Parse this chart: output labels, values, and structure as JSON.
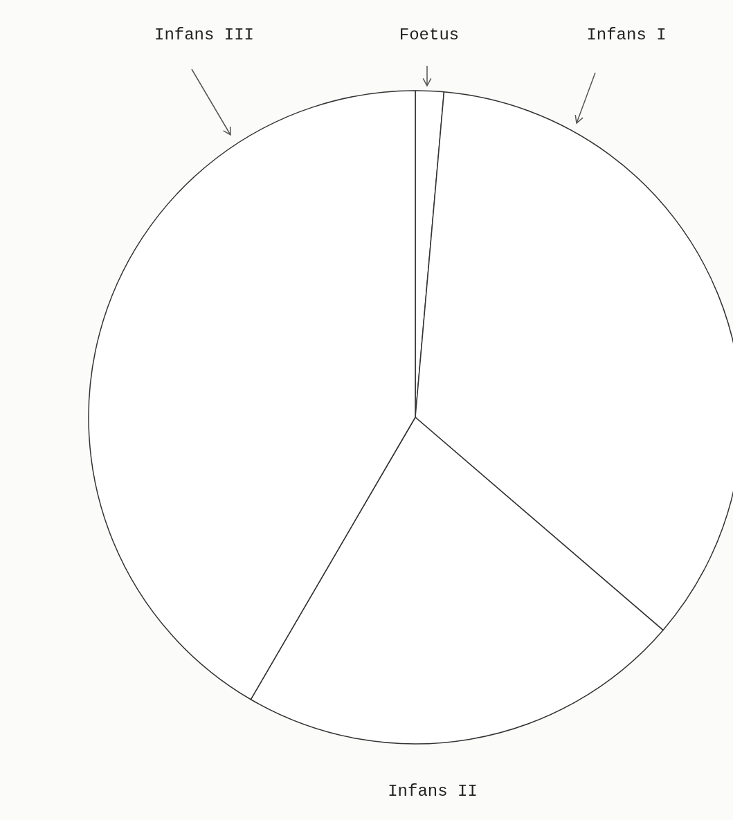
{
  "chart_data": {
    "type": "pie",
    "categories": [
      "Foetus",
      "Infans I",
      "Infans II",
      "Infans III"
    ],
    "values": [
      1.4,
      34.9,
      22.1,
      41.6
    ],
    "colors": [
      "#ffffff",
      "#ffffff",
      "#ffffff",
      "#ffffff"
    ],
    "legend": false
  }
}
